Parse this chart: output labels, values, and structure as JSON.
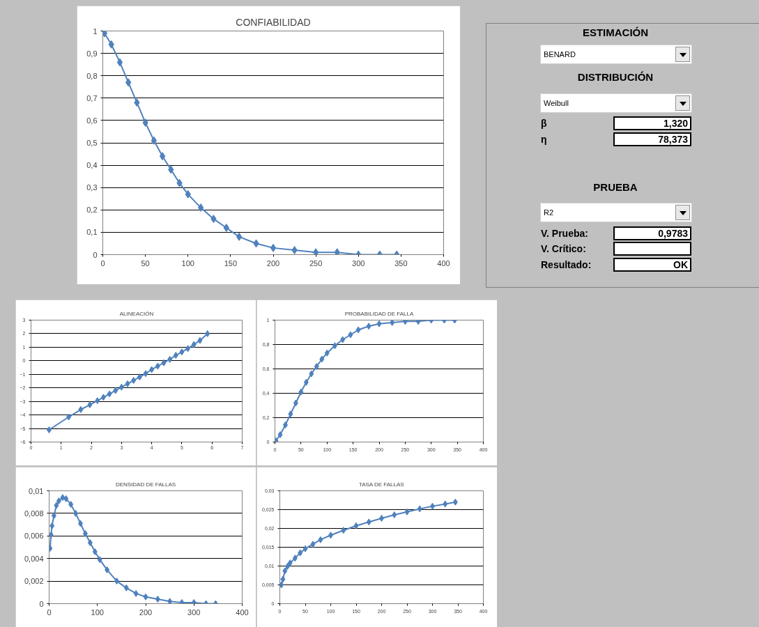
{
  "chart_data": [
    {
      "type": "line",
      "title": "CONFIABILIDAD",
      "marker": "diamond",
      "grid": "y",
      "x": [
        2,
        10,
        20,
        30,
        40,
        50,
        60,
        70,
        80,
        90,
        100,
        115,
        130,
        145,
        160,
        180,
        200,
        225,
        250,
        275,
        300,
        325,
        345
      ],
      "series": [
        {
          "color": "#4f81bd",
          "values": [
            0.99,
            0.94,
            0.86,
            0.77,
            0.68,
            0.59,
            0.51,
            0.44,
            0.38,
            0.32,
            0.27,
            0.21,
            0.16,
            0.12,
            0.08,
            0.05,
            0.03,
            0.02,
            0.01,
            0.01,
            0.0,
            0.0,
            0.0
          ]
        }
      ],
      "xlim": [
        0,
        400
      ],
      "xticks": [
        0,
        50,
        100,
        150,
        200,
        250,
        300,
        350,
        400
      ],
      "ylim": [
        0,
        1
      ],
      "yticks": [
        0,
        {
          "value": 0.1,
          "label": "0,1"
        },
        {
          "value": 0.2,
          "label": "0,2"
        },
        {
          "value": 0.3,
          "label": "0,3"
        },
        {
          "value": 0.4,
          "label": "0,4"
        },
        {
          "value": 0.5,
          "label": "0,5"
        },
        {
          "value": 0.6,
          "label": "0,6"
        },
        {
          "value": 0.7,
          "label": "0,7"
        },
        {
          "value": 0.8,
          "label": "0,8"
        },
        {
          "value": 0.9,
          "label": "0,9"
        },
        1
      ]
    },
    {
      "type": "other",
      "annotations": [
        "ESTIMACIÓN",
        "BENARD",
        "DISTRIBUCIÓN",
        "Weibull",
        "β",
        "1,320",
        "η",
        "78,373",
        "PRUEBA",
        "R2",
        "V. Prueba:",
        "0,9783",
        "V. Crítico:",
        "Resultado:",
        "OK"
      ]
    },
    {
      "type": "line",
      "title": "ALINEACIÓN",
      "marker": "diamond",
      "grid": "y",
      "x": [
        0.6,
        1.25,
        1.65,
        1.95,
        2.2,
        2.4,
        2.6,
        2.8,
        3.0,
        3.2,
        3.4,
        3.6,
        3.8,
        4.0,
        4.2,
        4.4,
        4.6,
        4.8,
        5.0,
        5.2,
        5.4,
        5.6,
        5.85
      ],
      "series": [
        {
          "color": "#4f81bd",
          "values": [
            -5.1,
            -4.15,
            -3.6,
            -3.25,
            -2.95,
            -2.7,
            -2.45,
            -2.2,
            -1.95,
            -1.7,
            -1.45,
            -1.2,
            -0.95,
            -0.65,
            -0.4,
            -0.15,
            0.1,
            0.4,
            0.65,
            0.9,
            1.2,
            1.5,
            2.0
          ]
        }
      ],
      "xlim": [
        0,
        7
      ],
      "xticks": [
        0,
        1,
        2,
        3,
        4,
        5,
        6,
        7
      ],
      "ylim": [
        -6,
        3
      ],
      "yticks": [
        -6,
        -5,
        -4,
        -3,
        -2,
        -1,
        0,
        1,
        2,
        3
      ]
    },
    {
      "type": "line",
      "title": "PROBABILIDAD DE FALLA",
      "marker": "diamond",
      "grid": "y",
      "x": [
        2,
        10,
        20,
        30,
        40,
        50,
        60,
        70,
        80,
        90,
        100,
        115,
        130,
        145,
        160,
        180,
        200,
        225,
        250,
        275,
        300,
        325,
        345
      ],
      "series": [
        {
          "color": "#4f81bd",
          "values": [
            0.01,
            0.06,
            0.14,
            0.23,
            0.32,
            0.41,
            0.49,
            0.56,
            0.62,
            0.68,
            0.73,
            0.79,
            0.84,
            0.88,
            0.92,
            0.95,
            0.97,
            0.98,
            0.99,
            0.99,
            1.0,
            1.0,
            1.0
          ]
        }
      ],
      "xlim": [
        0,
        400
      ],
      "xticks": [
        0,
        50,
        100,
        150,
        200,
        250,
        300,
        350,
        400
      ],
      "ylim": [
        0,
        1
      ],
      "yticks": [
        0,
        {
          "value": 0.2,
          "label": "0,2"
        },
        {
          "value": 0.4,
          "label": "0,4"
        },
        {
          "value": 0.6,
          "label": "0,6"
        },
        {
          "value": 0.8,
          "label": "0,8"
        },
        1
      ]
    },
    {
      "type": "line",
      "title": "DENSIDAD DE FALLAS",
      "marker": "diamond",
      "grid": "y",
      "x": [
        2,
        4,
        6,
        10,
        15,
        20,
        28,
        35,
        45,
        55,
        65,
        75,
        85,
        95,
        105,
        120,
        140,
        160,
        180,
        200,
        225,
        250,
        275,
        300,
        325,
        345
      ],
      "series": [
        {
          "color": "#4f81bd",
          "values": [
            0.0049,
            0.0061,
            0.0069,
            0.0078,
            0.0087,
            0.0091,
            0.0094,
            0.0093,
            0.0088,
            0.008,
            0.0071,
            0.0062,
            0.0054,
            0.0046,
            0.0039,
            0.003,
            0.002,
            0.0014,
            0.0009,
            0.0006,
            0.0004,
            0.0002,
            0.0001,
            0.0001,
            0.0,
            0.0
          ]
        }
      ],
      "xlim": [
        0,
        400
      ],
      "xticks": [
        0,
        100,
        200,
        300,
        400
      ],
      "ylim": [
        0,
        0.01
      ],
      "yticks": [
        0,
        {
          "value": 0.002,
          "label": "0,002"
        },
        {
          "value": 0.004,
          "label": "0,004"
        },
        {
          "value": 0.006,
          "label": "0,006"
        },
        {
          "value": 0.008,
          "label": "0,008"
        },
        {
          "value": 0.01,
          "label": "0,01"
        }
      ]
    },
    {
      "type": "line",
      "title": "TASA DE FALLAS",
      "marker": "diamond",
      "grid": "y",
      "x": [
        3,
        6,
        10,
        15,
        20,
        30,
        40,
        50,
        65,
        80,
        100,
        125,
        150,
        175,
        200,
        225,
        250,
        275,
        300,
        325,
        345
      ],
      "series": [
        {
          "color": "#4f81bd",
          "values": [
            0.005,
            0.0065,
            0.0087,
            0.0099,
            0.0108,
            0.0121,
            0.0135,
            0.0146,
            0.0158,
            0.017,
            0.0182,
            0.0195,
            0.0207,
            0.0217,
            0.0227,
            0.0236,
            0.0244,
            0.0252,
            0.0259,
            0.0265,
            0.027
          ]
        }
      ],
      "xlim": [
        0,
        400
      ],
      "xticks": [
        0,
        50,
        100,
        150,
        200,
        250,
        300,
        350,
        400
      ],
      "ylim": [
        0,
        0.03
      ],
      "yticks": [
        0,
        {
          "value": 0.005,
          "label": "0,005"
        },
        {
          "value": 0.01,
          "label": "0,01"
        },
        {
          "value": 0.015,
          "label": "0,015"
        },
        {
          "value": 0.02,
          "label": "0,02"
        },
        {
          "value": 0.025,
          "label": "0,025"
        },
        {
          "value": 0.03,
          "label": "0,03"
        }
      ]
    }
  ]
}
